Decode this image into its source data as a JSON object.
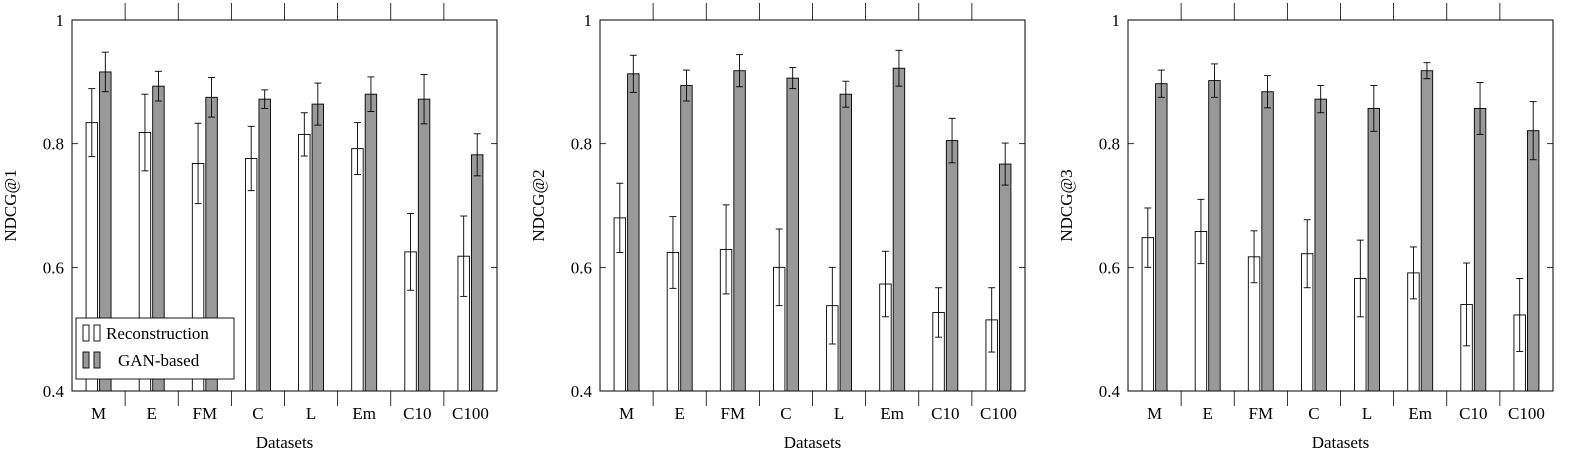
{
  "chart_data": [
    {
      "type": "bar",
      "xlabel": "Datasets",
      "ylabel": "NDCG@1",
      "ylim": [
        0.4,
        1.0
      ],
      "yticks": [
        "0.4",
        "0.6",
        "0.8",
        "1"
      ],
      "categories": [
        "M",
        "E",
        "FM",
        "C",
        "L",
        "Em",
        "C10",
        "C100"
      ],
      "legend": "bottom-left",
      "series": [
        {
          "name": "Reconstruction",
          "values": [
            0.834,
            0.818,
            0.768,
            0.776,
            0.815,
            0.792,
            0.625,
            0.618
          ],
          "errors": [
            0.055,
            0.062,
            0.065,
            0.052,
            0.035,
            0.042,
            0.062,
            0.065
          ]
        },
        {
          "name": "GAN-based",
          "values": [
            0.916,
            0.893,
            0.875,
            0.872,
            0.864,
            0.88,
            0.872,
            0.782
          ],
          "errors": [
            0.032,
            0.024,
            0.032,
            0.015,
            0.034,
            0.028,
            0.04,
            0.034
          ]
        }
      ]
    },
    {
      "type": "bar",
      "xlabel": "Datasets",
      "ylabel": "NDCG@2",
      "ylim": [
        0.4,
        1.0
      ],
      "yticks": [
        "0.4",
        "0.6",
        "0.8",
        "1"
      ],
      "categories": [
        "M",
        "E",
        "FM",
        "C",
        "L",
        "Em",
        "C10",
        "C100"
      ],
      "series": [
        {
          "name": "Reconstruction",
          "values": [
            0.68,
            0.624,
            0.629,
            0.6,
            0.538,
            0.573,
            0.527,
            0.515
          ],
          "errors": [
            0.056,
            0.058,
            0.072,
            0.062,
            0.062,
            0.053,
            0.04,
            0.052
          ]
        },
        {
          "name": "GAN-based",
          "values": [
            0.913,
            0.894,
            0.918,
            0.906,
            0.88,
            0.922,
            0.805,
            0.767
          ],
          "errors": [
            0.03,
            0.025,
            0.026,
            0.017,
            0.021,
            0.029,
            0.036,
            0.034
          ]
        }
      ]
    },
    {
      "type": "bar",
      "xlabel": "Datasets",
      "ylabel": "NDCG@3",
      "ylim": [
        0.4,
        1.0
      ],
      "yticks": [
        "0.4",
        "0.6",
        "0.8",
        "1"
      ],
      "categories": [
        "M",
        "E",
        "FM",
        "C",
        "L",
        "Em",
        "C10",
        "C100"
      ],
      "series": [
        {
          "name": "Reconstruction",
          "values": [
            0.648,
            0.658,
            0.617,
            0.622,
            0.582,
            0.591,
            0.54,
            0.523
          ],
          "errors": [
            0.048,
            0.052,
            0.042,
            0.055,
            0.062,
            0.042,
            0.067,
            0.059
          ]
        },
        {
          "name": "GAN-based",
          "values": [
            0.897,
            0.902,
            0.884,
            0.872,
            0.857,
            0.918,
            0.857,
            0.821
          ],
          "errors": [
            0.022,
            0.027,
            0.026,
            0.022,
            0.037,
            0.013,
            0.042,
            0.047
          ]
        }
      ]
    }
  ],
  "colors": {
    "reconstruction_fill": "#ffffff",
    "gan_fill": "#999999",
    "stroke": "#000000"
  }
}
